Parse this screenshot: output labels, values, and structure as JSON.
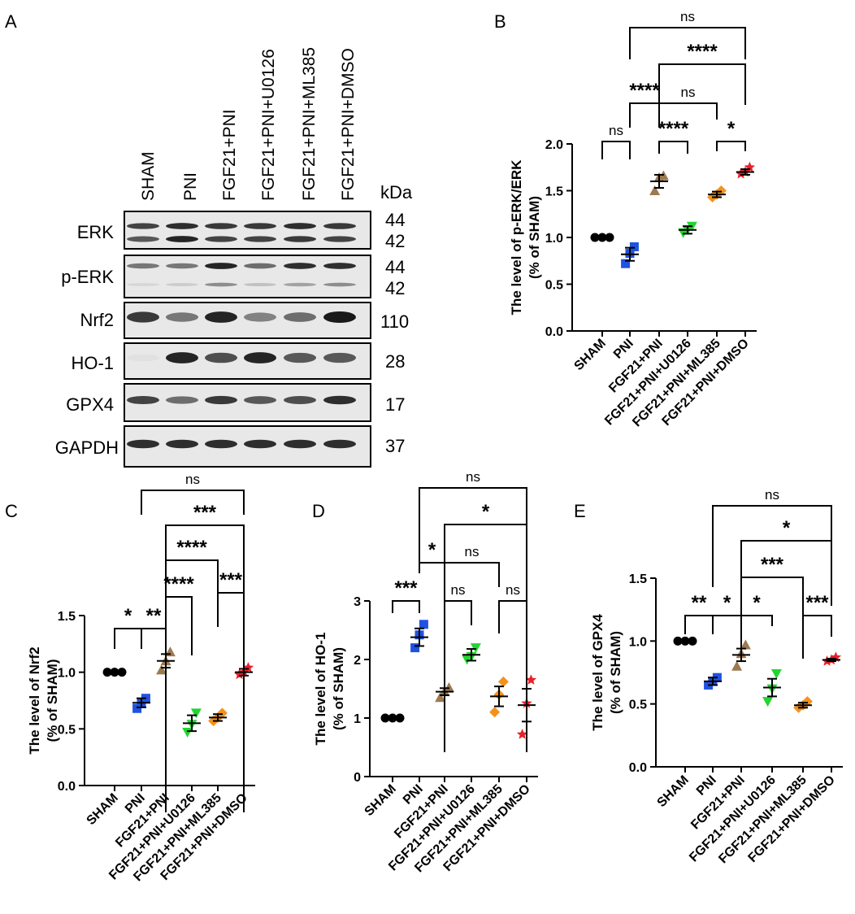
{
  "blot": {
    "panel_label": "A",
    "lanes": [
      "SHAM",
      "PNI",
      "FGF21+PNI",
      "FGF21+PNI+U0126",
      "FGF21+PNI+ML385",
      "FGF21+PNI+DMSO"
    ],
    "kda_label": "kDa",
    "rows": [
      {
        "name": "ERK",
        "kda": [
          "44",
          "42"
        ]
      },
      {
        "name": "p-ERK",
        "kda": [
          "44",
          "42"
        ]
      },
      {
        "name": "Nrf2",
        "kda": [
          "110"
        ]
      },
      {
        "name": "HO-1",
        "kda": [
          "28"
        ]
      },
      {
        "name": "GPX4",
        "kda": [
          "17"
        ]
      },
      {
        "name": "GAPDH",
        "kda": [
          "37"
        ]
      }
    ]
  },
  "chart_data": [
    {
      "panel": "B",
      "type": "scatter",
      "categories": [
        "SHAM",
        "PNI",
        "FGF21+PNI",
        "FGF21+PNI+U0126",
        "FGF21+PNI+ML385",
        "FGF21+PNI+DMSO"
      ],
      "ylabel": [
        "The level of p-ERK/ERK",
        "(% of SHAM)"
      ],
      "ylim": [
        0,
        2.0
      ],
      "yticks": [
        "0.0",
        "0.5",
        "1.0",
        "1.5",
        "2.0"
      ],
      "means": [
        1.0,
        0.82,
        1.6,
        1.08,
        1.46,
        1.7
      ],
      "sems": [
        0,
        0.07,
        0.07,
        0.04,
        0.03,
        0.03
      ],
      "points": [
        [
          1.0,
          1.0,
          1.0
        ],
        [
          0.72,
          0.83,
          0.9
        ],
        [
          1.5,
          1.64,
          1.66
        ],
        [
          1.05,
          1.08,
          1.12
        ],
        [
          1.43,
          1.46,
          1.5
        ],
        [
          1.68,
          1.7,
          1.75
        ]
      ],
      "comparisons": [
        {
          "a": 0,
          "b": 1,
          "label": "ns"
        },
        {
          "a": 2,
          "b": 3,
          "label": "****"
        },
        {
          "a": 4,
          "b": 5,
          "label": "*"
        },
        {
          "a": 1,
          "b": 2,
          "label": "****"
        },
        {
          "a": 2,
          "b": 4,
          "label": "ns"
        },
        {
          "a": 2,
          "b": 5,
          "label": "****"
        },
        {
          "a": 1,
          "b": 5,
          "label": "ns"
        }
      ]
    },
    {
      "panel": "C",
      "type": "scatter",
      "categories": [
        "SHAM",
        "PNI",
        "FGF21+PNI",
        "FGF21+PNI+U0126",
        "FGF21+PNI+ML385",
        "FGF21+PNI+DMSO"
      ],
      "ylabel": [
        "The level of Nrf2",
        "(% of SHAM)"
      ],
      "ylim": [
        0,
        1.5
      ],
      "yticks": [
        "0.0",
        "0.5",
        "1.0",
        "1.5"
      ],
      "means": [
        1.0,
        0.73,
        1.1,
        0.55,
        0.6,
        1.0
      ],
      "sems": [
        0,
        0.04,
        0.06,
        0.07,
        0.03,
        0.03
      ],
      "points": [
        [
          1.0,
          1.0,
          1.0
        ],
        [
          0.68,
          0.73,
          0.77
        ],
        [
          1.02,
          1.1,
          1.18
        ],
        [
          0.47,
          0.54,
          0.64
        ],
        [
          0.57,
          0.6,
          0.64
        ],
        [
          0.98,
          1.0,
          1.04
        ]
      ],
      "comparisons": [
        {
          "a": 0,
          "b": 1,
          "label": "*"
        },
        {
          "a": 1,
          "b": 2,
          "label": "**"
        },
        {
          "a": 4,
          "b": 5,
          "label": "***"
        },
        {
          "a": 2,
          "b": 3,
          "label": "****"
        },
        {
          "a": 2,
          "b": 4,
          "label": "****"
        },
        {
          "a": 2,
          "b": 5,
          "label": "***"
        },
        {
          "a": 1,
          "b": 5,
          "label": "ns"
        }
      ]
    },
    {
      "panel": "D",
      "type": "scatter",
      "categories": [
        "SHAM",
        "PNI",
        "FGF21+PNI",
        "FGF21+PNI+U0126",
        "FGF21+PNI+ML385",
        "FGF21+PNI+DMSO"
      ],
      "ylabel": [
        "The level of HO-1",
        "(% of SHAM)"
      ],
      "ylim": [
        0,
        3
      ],
      "yticks": [
        "0",
        "1",
        "2",
        "3"
      ],
      "means": [
        1.0,
        2.38,
        1.45,
        2.08,
        1.37,
        1.22
      ],
      "sems": [
        0,
        0.15,
        0.06,
        0.1,
        0.17,
        0.28
      ],
      "points": [
        [
          1.0,
          1.0,
          1.0
        ],
        [
          2.2,
          2.42,
          2.6
        ],
        [
          1.35,
          1.45,
          1.52
        ],
        [
          2.0,
          2.05,
          2.2
        ],
        [
          1.1,
          1.4,
          1.62
        ],
        [
          0.72,
          1.25,
          1.65
        ]
      ],
      "comparisons": [
        {
          "a": 0,
          "b": 1,
          "label": "***"
        },
        {
          "a": 2,
          "b": 3,
          "label": "ns"
        },
        {
          "a": 4,
          "b": 5,
          "label": "ns"
        },
        {
          "a": 1,
          "b": 2,
          "label": "*"
        },
        {
          "a": 2,
          "b": 4,
          "label": "ns"
        },
        {
          "a": 2,
          "b": 5,
          "label": "*"
        },
        {
          "a": 1,
          "b": 5,
          "label": "ns"
        }
      ]
    },
    {
      "panel": "E",
      "type": "scatter",
      "categories": [
        "SHAM",
        "PNI",
        "FGF21+PNI",
        "FGF21+PNI+U0126",
        "FGF21+PNI+ML385",
        "FGF21+PNI+DMSO"
      ],
      "ylabel": [
        "The level of GPX4",
        "(% of SHAM)"
      ],
      "ylim": [
        0,
        1.5
      ],
      "yticks": [
        "0.0",
        "0.5",
        "1.0",
        "1.5"
      ],
      "means": [
        1.0,
        0.68,
        0.89,
        0.63,
        0.49,
        0.85
      ],
      "sems": [
        0,
        0.03,
        0.05,
        0.07,
        0.02,
        0.01
      ],
      "points": [
        [
          1.0,
          1.0,
          1.0
        ],
        [
          0.65,
          0.68,
          0.71
        ],
        [
          0.8,
          0.9,
          0.97
        ],
        [
          0.52,
          0.62,
          0.74
        ],
        [
          0.47,
          0.49,
          0.52
        ],
        [
          0.84,
          0.85,
          0.87
        ]
      ],
      "comparisons": [
        {
          "a": 0,
          "b": 1,
          "label": "**"
        },
        {
          "a": 1,
          "b": 2,
          "label": "*"
        },
        {
          "a": 2,
          "b": 3,
          "label": "*"
        },
        {
          "a": 4,
          "b": 5,
          "label": "***"
        },
        {
          "a": 2,
          "b": 4,
          "label": "***"
        },
        {
          "a": 2,
          "b": 5,
          "label": "*"
        },
        {
          "a": 1,
          "b": 5,
          "label": "ns"
        }
      ]
    }
  ],
  "styles": {
    "group_colors": [
      "#000000",
      "#1f52e0",
      "#9c7a52",
      "#22d630",
      "#f2921d",
      "#e8202a"
    ],
    "group_markers": [
      "circle",
      "square",
      "triangle-up",
      "triangle-down",
      "diamond",
      "star"
    ]
  }
}
